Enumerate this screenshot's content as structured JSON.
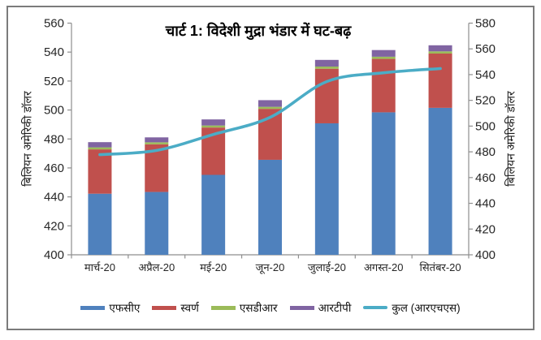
{
  "chart_data": {
    "type": "bar",
    "subtype": "stacked-column-with-line",
    "title": "चार्ट 1: विदेशी मुद्रा भंडार में घट-बढ़",
    "categories": [
      "मार्च-20",
      "अप्रैल-20",
      "मई-20",
      "जून-20",
      "जुलाई-20",
      "अगस्त-20",
      "सितंबर-20"
    ],
    "series": [
      {
        "name": "एफसीए",
        "type": "bar",
        "axis": "left",
        "color": "#4F81BD",
        "values": [
          442.2,
          443.4,
          455.2,
          465.6,
          490.8,
          498.4,
          501.5
        ]
      },
      {
        "name": "स्वर्ण",
        "type": "bar",
        "axis": "left",
        "color": "#C0504D",
        "values": [
          30.6,
          32.9,
          32.7,
          35.2,
          37.7,
          36.9,
          37.5
        ]
      },
      {
        "name": "एसडीआर",
        "type": "bar",
        "axis": "left",
        "color": "#9BBB59",
        "values": [
          1.4,
          1.4,
          1.4,
          1.4,
          1.5,
          1.5,
          1.5
        ]
      },
      {
        "name": "आरटीपी",
        "type": "bar",
        "axis": "left",
        "color": "#8064A2",
        "values": [
          3.6,
          3.4,
          4.2,
          4.6,
          4.6,
          4.6,
          4.2
        ]
      },
      {
        "name": "कुल (आरएचएस)",
        "type": "line",
        "axis": "right",
        "color": "#4BACC6",
        "values": [
          477.8,
          481.1,
          493.5,
          506.8,
          534.6,
          541.4,
          544.7
        ]
      }
    ],
    "left_axis": {
      "min": 400,
      "max": 560,
      "step": 20,
      "title": "बिलियन अमेरिकी डॉलर"
    },
    "right_axis": {
      "min": 400,
      "max": 580,
      "step": 20,
      "title": "बिलियन अमेरिकी डॉलर"
    },
    "legend_position": "bottom",
    "grid": false,
    "axis_color": "#8e8e8e",
    "tick_label_color": "#262626"
  }
}
